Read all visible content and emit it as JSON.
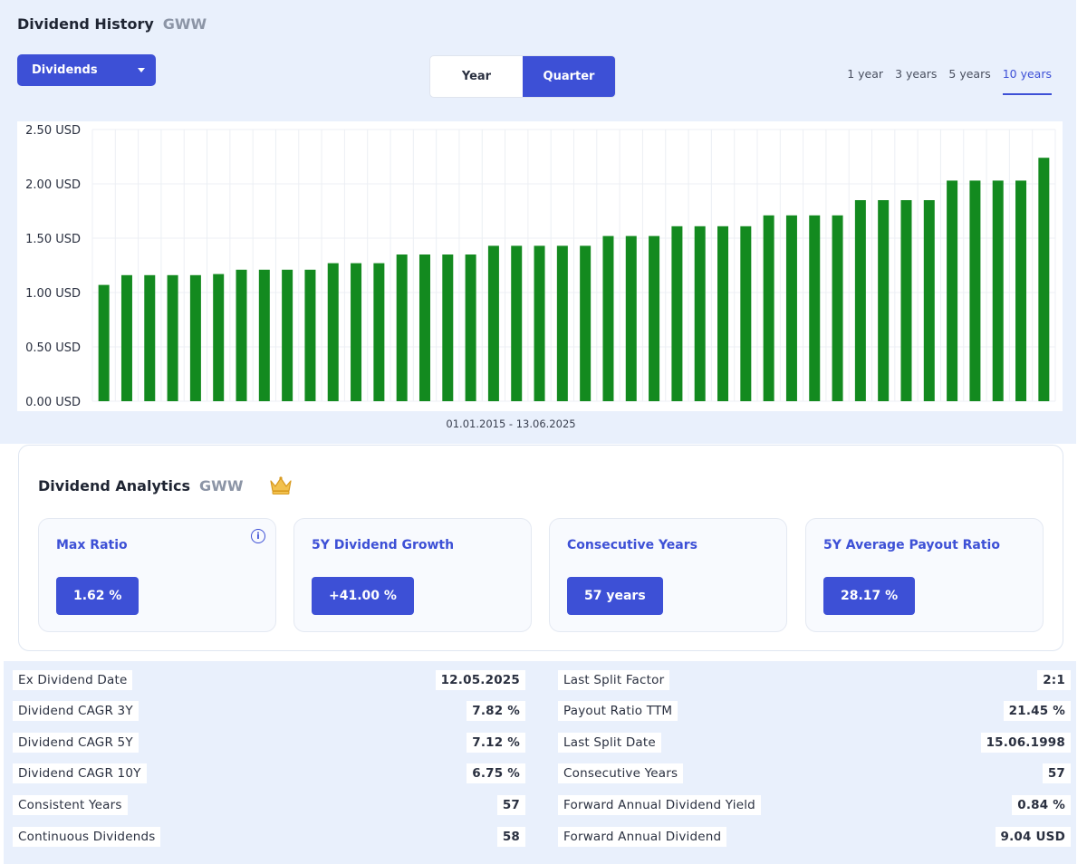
{
  "header": {
    "title": "Dividend History",
    "ticker": "GWW"
  },
  "dropdown": {
    "label": "Dividends",
    "icon": "caret-down-icon"
  },
  "toggle": {
    "year": "Year",
    "quarter": "Quarter",
    "active": "quarter"
  },
  "ranges": [
    {
      "label": "1 year",
      "active": false
    },
    {
      "label": "3 years",
      "active": false
    },
    {
      "label": "5 years",
      "active": false
    },
    {
      "label": "10 years",
      "active": true
    }
  ],
  "chart_data": {
    "type": "bar",
    "y_unit": "USD",
    "ylim": [
      0,
      2.5
    ],
    "y_ticks": [
      "0.00 USD",
      "0.50 USD",
      "1.00 USD",
      "1.50 USD",
      "2.00 USD",
      "2.50 USD"
    ],
    "bar_color": "#138a1f",
    "grid": true,
    "date_range": "01.01.2015 - 13.06.2025",
    "values": [
      1.07,
      1.16,
      1.16,
      1.16,
      1.16,
      1.17,
      1.21,
      1.21,
      1.21,
      1.21,
      1.27,
      1.27,
      1.27,
      1.35,
      1.35,
      1.35,
      1.35,
      1.43,
      1.43,
      1.43,
      1.43,
      1.43,
      1.52,
      1.52,
      1.52,
      1.61,
      1.61,
      1.61,
      1.61,
      1.71,
      1.71,
      1.71,
      1.71,
      1.85,
      1.85,
      1.85,
      1.85,
      2.03,
      2.03,
      2.03,
      2.03,
      2.24
    ]
  },
  "analytics": {
    "title": "Dividend Analytics",
    "ticker": "GWW",
    "crown_icon": "crown-icon",
    "cards": [
      {
        "label": "Max Ratio",
        "value": "1.62 %",
        "info": "i"
      },
      {
        "label": "5Y Dividend Growth",
        "value": "+41.00 %"
      },
      {
        "label": "Consecutive Years",
        "value": "57 years"
      },
      {
        "label": "5Y Average Payout Ratio",
        "value": "28.17 %"
      }
    ]
  },
  "stats_left": [
    {
      "label": "Ex Dividend Date",
      "value": "12.05.2025"
    },
    {
      "label": "Dividend CAGR 3Y",
      "value": "7.82 %"
    },
    {
      "label": "Dividend CAGR 5Y",
      "value": "7.12 %"
    },
    {
      "label": "Dividend CAGR 10Y",
      "value": "6.75 %"
    },
    {
      "label": "Consistent Years",
      "value": "57"
    },
    {
      "label": "Continuous Dividends",
      "value": "58"
    }
  ],
  "stats_right": [
    {
      "label": "Last Split Factor",
      "value": "2:1"
    },
    {
      "label": "Payout Ratio TTM",
      "value": "21.45 %"
    },
    {
      "label": "Last Split Date",
      "value": "15.06.1998"
    },
    {
      "label": "Consecutive Years",
      "value": "57"
    },
    {
      "label": "Forward Annual Dividend Yield",
      "value": "0.84 %"
    },
    {
      "label": "Forward Annual Dividend",
      "value": "9.04 USD"
    }
  ],
  "colors": {
    "accent": "#3d50d6",
    "bar": "#138a1f",
    "panel_bg": "#e9f0fc"
  }
}
